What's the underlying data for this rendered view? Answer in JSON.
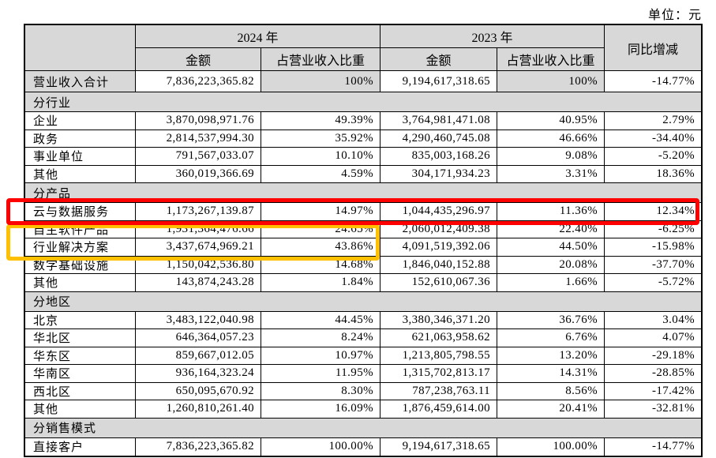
{
  "unit_label": "单位：元",
  "table": {
    "header": {
      "y2024": "2024 年",
      "y2023": "2023 年",
      "amount": "金额",
      "ratio": "占营业收入比重",
      "yoy": "同比增减"
    },
    "rows": [
      {
        "type": "total",
        "label": "营业收入合计",
        "a24": "7,836,223,365.82",
        "r24": "100%",
        "a23": "9,194,617,318.65",
        "r23": "100%",
        "yoy": "-14.77%"
      },
      {
        "type": "section",
        "label": "分行业"
      },
      {
        "type": "data",
        "label": "企业",
        "a24": "3,870,098,971.76",
        "r24": "49.39%",
        "a23": "3,764,981,471.08",
        "r23": "40.95%",
        "yoy": "2.79%"
      },
      {
        "type": "data",
        "label": "政务",
        "a24": "2,814,537,994.30",
        "r24": "35.92%",
        "a23": "4,290,460,745.08",
        "r23": "46.66%",
        "yoy": "-34.40%"
      },
      {
        "type": "data",
        "label": "事业单位",
        "a24": "791,567,033.07",
        "r24": "10.10%",
        "a23": "835,003,168.26",
        "r23": "9.08%",
        "yoy": "-5.20%"
      },
      {
        "type": "data",
        "label": "其他",
        "a24": "360,019,366.69",
        "r24": "4.59%",
        "a23": "304,171,934.23",
        "r23": "3.31%",
        "yoy": "18.36%"
      },
      {
        "type": "section",
        "label": "分产品"
      },
      {
        "type": "data",
        "label": "云与数据服务",
        "a24": "1,173,267,139.87",
        "r24": "14.97%",
        "a23": "1,044,435,296.97",
        "r23": "11.36%",
        "yoy": "12.34%"
      },
      {
        "type": "data",
        "label": "自主软件产品",
        "a24": "1,931,364,476.66",
        "r24": "24.65%",
        "a23": "2,060,012,409.38",
        "r23": "22.40%",
        "yoy": "-6.25%"
      },
      {
        "type": "data",
        "label": "行业解决方案",
        "a24": "3,437,674,969.21",
        "r24": "43.86%",
        "a23": "4,091,519,392.06",
        "r23": "44.50%",
        "yoy": "-15.98%"
      },
      {
        "type": "data",
        "label": "数字基础设施",
        "a24": "1,150,042,536.80",
        "r24": "14.68%",
        "a23": "1,846,040,152.88",
        "r23": "20.08%",
        "yoy": "-37.70%"
      },
      {
        "type": "data",
        "label": "其他",
        "a24": "143,874,243.28",
        "r24": "1.84%",
        "a23": "152,610,067.36",
        "r23": "1.66%",
        "yoy": "-5.72%"
      },
      {
        "type": "section",
        "label": "分地区"
      },
      {
        "type": "data",
        "label": "北京",
        "a24": "3,483,122,040.98",
        "r24": "44.45%",
        "a23": "3,380,346,371.20",
        "r23": "36.76%",
        "yoy": "3.04%"
      },
      {
        "type": "data",
        "label": "华北区",
        "a24": "646,364,057.23",
        "r24": "8.24%",
        "a23": "621,063,958.62",
        "r23": "6.76%",
        "yoy": "4.07%"
      },
      {
        "type": "data",
        "label": "华东区",
        "a24": "859,667,012.05",
        "r24": "10.97%",
        "a23": "1,213,805,798.55",
        "r23": "13.20%",
        "yoy": "-29.18%"
      },
      {
        "type": "data",
        "label": "华南区",
        "a24": "936,164,323.24",
        "r24": "11.95%",
        "a23": "1,315,702,813.17",
        "r23": "14.31%",
        "yoy": "-28.85%"
      },
      {
        "type": "data",
        "label": "西北区",
        "a24": "650,095,670.92",
        "r24": "8.30%",
        "a23": "787,238,763.11",
        "r23": "8.56%",
        "yoy": "-17.42%"
      },
      {
        "type": "data",
        "label": "其他",
        "a24": "1,260,810,261.40",
        "r24": "16.09%",
        "a23": "1,876,459,614.00",
        "r23": "20.41%",
        "yoy": "-32.81%"
      },
      {
        "type": "section",
        "label": "分销售模式"
      },
      {
        "type": "data",
        "label": "直接客户",
        "a24": "7,836,223,365.82",
        "r24": "100.00%",
        "a23": "9,194,617,318.65",
        "r23": "100.00%",
        "yoy": "-14.77%"
      }
    ]
  },
  "highlights": {
    "red_box": {
      "color": "#fe0000",
      "covers": [
        "云与数据服务"
      ]
    },
    "yellow_box": {
      "color": "#ffc000",
      "covers": [
        "自主软件产品",
        "行业解决方案"
      ]
    }
  },
  "colors": {
    "shading_gray": "#d8d8d8",
    "border_black": "#000000"
  }
}
